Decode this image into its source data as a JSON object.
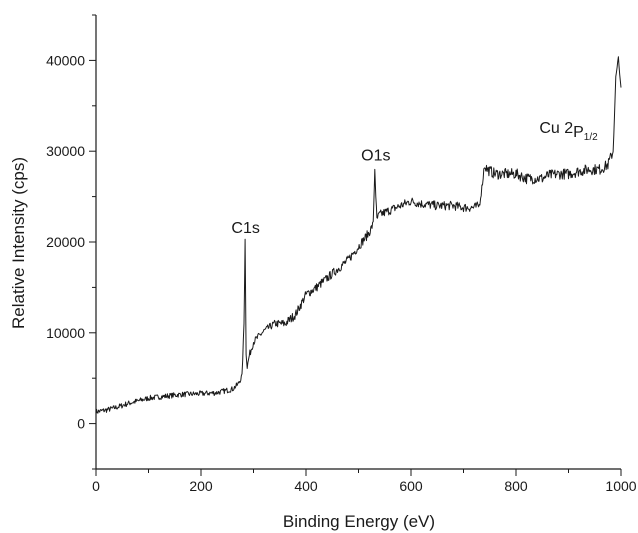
{
  "chart_data": {
    "type": "line",
    "title": "",
    "xlabel": "Binding Energy (eV)",
    "ylabel": "Relative Intensity (cps)",
    "xlim": [
      0,
      1000
    ],
    "ylim": [
      -5000,
      45000
    ],
    "x_ticks": [
      0,
      200,
      400,
      600,
      800,
      1000
    ],
    "x_tick_labels": [
      "0",
      "200",
      "400",
      "600",
      "800",
      "1000"
    ],
    "y_ticks": [
      0,
      10000,
      20000,
      30000,
      40000
    ],
    "y_tick_labels": [
      "0",
      "10000",
      "20000",
      "30000",
      "40000"
    ],
    "grid": false,
    "legend": "none",
    "line_color": "#1a1a1a",
    "series": [
      {
        "x": [
          0,
          20,
          40,
          60,
          80,
          100,
          130,
          160,
          200,
          230,
          260,
          270,
          278,
          282,
          284,
          285,
          286,
          288,
          292,
          300,
          320,
          340,
          360,
          380,
          400,
          420,
          440,
          460,
          480,
          500,
          520,
          528,
          531,
          533,
          535,
          540,
          560,
          580,
          600,
          620,
          650,
          680,
          700,
          720,
          730,
          735,
          740,
          745,
          760,
          780,
          800,
          820,
          840,
          850,
          860,
          880,
          900,
          920,
          940,
          960,
          975,
          985,
          990,
          995,
          1000
        ],
        "y": [
          1300,
          1500,
          1800,
          2200,
          2500,
          2800,
          3000,
          3200,
          3300,
          3400,
          3800,
          4300,
          5200,
          11000,
          20300,
          14000,
          7800,
          6200,
          7500,
          9000,
          10200,
          11000,
          11000,
          12000,
          14200,
          15000,
          16000,
          17000,
          18000,
          19500,
          21000,
          22000,
          28000,
          25000,
          22500,
          23000,
          23500,
          24000,
          24500,
          24200,
          24000,
          24000,
          23800,
          23800,
          24000,
          26000,
          28500,
          28000,
          27500,
          27500,
          27500,
          27000,
          27000,
          27000,
          27300,
          27500,
          27500,
          27800,
          28000,
          28000,
          28500,
          30000,
          38000,
          40200,
          37000
        ],
        "noise": [
          300,
          300,
          300,
          300,
          300,
          300,
          300,
          300,
          300,
          300,
          300,
          300,
          300,
          0,
          0,
          0,
          300,
          300,
          400,
          400,
          400,
          400,
          500,
          500,
          500,
          500,
          500,
          500,
          500,
          500,
          500,
          400,
          0,
          0,
          500,
          500,
          500,
          500,
          500,
          500,
          500,
          500,
          500,
          500,
          500,
          400,
          600,
          600,
          600,
          600,
          600,
          600,
          600,
          600,
          600,
          600,
          600,
          600,
          600,
          600,
          600,
          600,
          400,
          300,
          0
        ]
      }
    ],
    "annotations": [
      {
        "text": "C1s",
        "x": 285,
        "y": 21000
      },
      {
        "text": "O1s",
        "x": 533,
        "y": 29000
      },
      {
        "text": "Cu 2",
        "sub": "P1/2",
        "x": 900,
        "y": 32000
      }
    ]
  }
}
